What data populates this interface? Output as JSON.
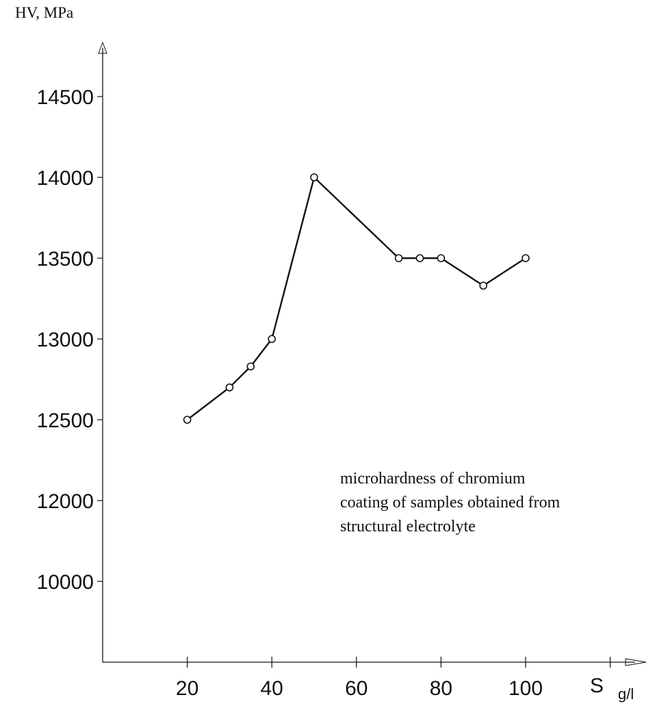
{
  "chart_data": {
    "type": "line",
    "title": "",
    "ylabel": "HV, MPa",
    "xlabel_main": "S",
    "xlabel_unit": "g/l",
    "annotation_lines": [
      "microhardness of chromium",
      "coating of samples obtained from",
      "structural electrolyte"
    ],
    "x_ticks": [
      20,
      40,
      60,
      80,
      100
    ],
    "x_tick_marks": [
      20,
      40,
      60,
      80,
      100,
      120
    ],
    "y_ticks": [
      "10000",
      "12000",
      "12500",
      "13000",
      "13500",
      "14000",
      "14500"
    ],
    "y_tick_values": [
      12500,
      13000,
      13500,
      14000,
      14500
    ],
    "x_range": [
      0,
      130
    ],
    "grid": false,
    "series": [
      {
        "x": [
          20,
          30,
          35,
          40,
          50,
          70,
          75,
          80,
          90,
          100
        ],
        "y": [
          12500,
          12700,
          12830,
          13000,
          14000,
          13500,
          13500,
          13500,
          13330,
          13500
        ]
      }
    ]
  }
}
